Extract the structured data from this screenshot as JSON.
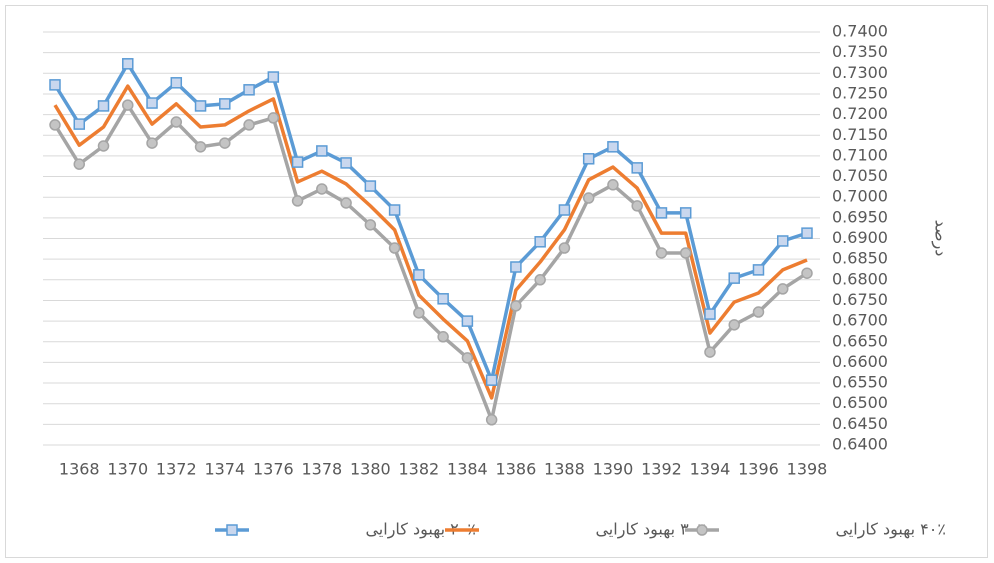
{
  "chart_data": {
    "type": "line",
    "y_label": "درصد",
    "categories": [
      null,
      "1368",
      null,
      "1370",
      null,
      "1372",
      null,
      "1374",
      null,
      "1376",
      null,
      "1378",
      null,
      "1380",
      null,
      "1382",
      null,
      "1384",
      null,
      "1386",
      null,
      "1388",
      null,
      "1390",
      null,
      "1392",
      null,
      "1394",
      null,
      "1396",
      null,
      "1398"
    ],
    "series": [
      {
        "name": "۲۰٪ بهبود کارایی",
        "color": "#5b9bd5",
        "marker": "square",
        "values": [
          0.7272,
          0.7177,
          0.7221,
          0.7323,
          0.7228,
          0.7277,
          0.7221,
          0.7226,
          0.726,
          0.7291,
          0.7085,
          0.7112,
          0.7083,
          0.7027,
          0.6969,
          0.6812,
          0.6754,
          0.67,
          0.6557,
          0.6831,
          0.6892,
          0.6969,
          0.7093,
          0.7122,
          0.7071,
          0.6962,
          0.6962,
          0.6717,
          0.6804,
          0.6824,
          0.6894,
          0.6913
        ]
      },
      {
        "name": "۳۰٪ بهبود کارایی",
        "color": "#ed7d31",
        "marker": "none",
        "values": [
          0.7223,
          0.7126,
          0.717,
          0.7269,
          0.7177,
          0.7226,
          0.717,
          0.7175,
          0.7209,
          0.7238,
          0.7037,
          0.7063,
          0.7032,
          0.6979,
          0.6921,
          0.6763,
          0.6705,
          0.6652,
          0.6514,
          0.6775,
          0.6843,
          0.6921,
          0.7042,
          0.7073,
          0.7022,
          0.6913,
          0.6913,
          0.6671,
          0.6746,
          0.6768,
          0.6824,
          0.6848
        ]
      },
      {
        "name": "۴۰٪ بهبود کارایی",
        "color": "#a5a5a5",
        "marker": "circle",
        "values": [
          0.7175,
          0.708,
          0.7124,
          0.7223,
          0.7131,
          0.7182,
          0.7122,
          0.7131,
          0.7175,
          0.7192,
          0.6991,
          0.702,
          0.6986,
          0.6933,
          0.6877,
          0.672,
          0.6662,
          0.6611,
          0.6461,
          0.6737,
          0.68,
          0.6877,
          0.6998,
          0.703,
          0.6979,
          0.6865,
          0.6865,
          0.6625,
          0.6691,
          0.6722,
          0.6778,
          0.6816
        ]
      }
    ],
    "ylim": [
      0.64,
      0.74
    ],
    "yticks": [
      {
        "value": 0.64,
        "label": "0.6400"
      },
      {
        "value": 0.645,
        "label": "0.6450"
      },
      {
        "value": 0.65,
        "label": "0.6500"
      },
      {
        "value": 0.655,
        "label": "0.6550"
      },
      {
        "value": 0.66,
        "label": "0.6600"
      },
      {
        "value": 0.665,
        "label": "0.6650"
      },
      {
        "value": 0.67,
        "label": "0.6700"
      },
      {
        "value": 0.675,
        "label": "0.6750"
      },
      {
        "value": 0.68,
        "label": "0.6800"
      },
      {
        "value": 0.685,
        "label": "0.6850"
      },
      {
        "value": 0.69,
        "label": "0.6900"
      },
      {
        "value": 0.695,
        "label": "0.6950"
      },
      {
        "value": 0.7,
        "label": "0.7000"
      },
      {
        "value": 0.705,
        "label": "0.7050"
      },
      {
        "value": 0.71,
        "label": "0.7100"
      },
      {
        "value": 0.715,
        "label": "0.7150"
      },
      {
        "value": 0.72,
        "label": "0.7200"
      },
      {
        "value": 0.725,
        "label": "0.7250"
      },
      {
        "value": 0.73,
        "label": "0.7300"
      },
      {
        "value": 0.735,
        "label": "0.7350"
      },
      {
        "value": 0.74,
        "label": "0.7400"
      }
    ],
    "grid": true,
    "legend": "bottom"
  }
}
